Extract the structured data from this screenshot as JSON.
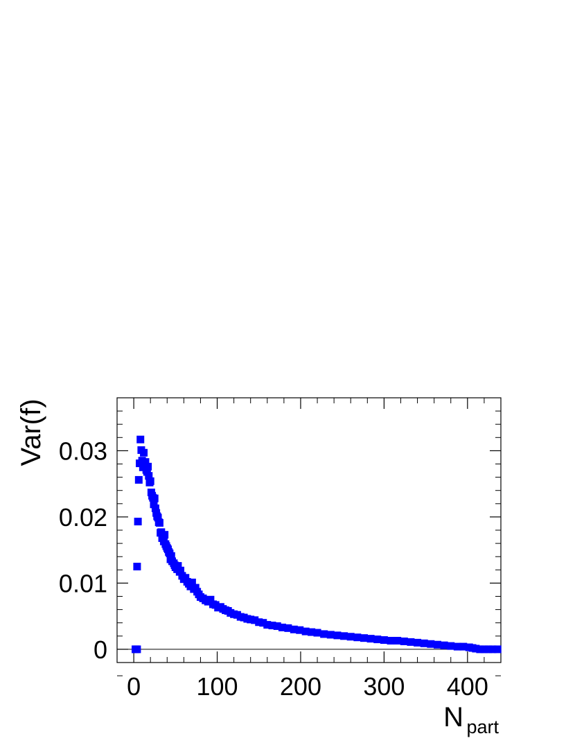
{
  "chart_data": {
    "type": "scatter",
    "title": "",
    "xlabel": {
      "main": "N",
      "sub": "part"
    },
    "ylabel": "Var(f)",
    "xlim": [
      -20,
      440
    ],
    "ylim": [
      -0.002,
      0.038
    ],
    "xticks": [
      {
        "value": 0,
        "label": "0"
      },
      {
        "value": 100,
        "label": "100"
      },
      {
        "value": 200,
        "label": "200"
      },
      {
        "value": 300,
        "label": "300"
      },
      {
        "value": 400,
        "label": "400"
      }
    ],
    "yticks": [
      {
        "value": 0,
        "label": "0"
      },
      {
        "value": 0.01,
        "label": "0.01"
      },
      {
        "value": 0.02,
        "label": "0.02"
      },
      {
        "value": 0.03,
        "label": "0.03"
      }
    ],
    "grid": false,
    "reference_line_y": 0,
    "marker": {
      "shape": "square",
      "color": "#0000ff"
    },
    "points": [
      [
        2,
        0.0
      ],
      [
        4,
        0.0
      ],
      [
        4,
        0.0125
      ],
      [
        5,
        0.0193
      ],
      [
        6,
        0.0256
      ],
      [
        7,
        0.0281
      ],
      [
        8,
        0.0317
      ],
      [
        9,
        0.0301
      ],
      [
        10,
        0.0285
      ],
      [
        11,
        0.0275
      ],
      [
        12,
        0.0297
      ],
      [
        13,
        0.0279
      ],
      [
        14,
        0.0283
      ],
      [
        15,
        0.0271
      ],
      [
        16,
        0.0268
      ],
      [
        17,
        0.0276
      ],
      [
        18,
        0.0262
      ],
      [
        19,
        0.0252
      ],
      [
        20,
        0.0254
      ],
      [
        21,
        0.0237
      ],
      [
        22,
        0.0232
      ],
      [
        23,
        0.0229
      ],
      [
        24,
        0.0219
      ],
      [
        25,
        0.0228
      ],
      [
        26,
        0.0213
      ],
      [
        27,
        0.0206
      ],
      [
        28,
        0.0201
      ],
      [
        29,
        0.0199
      ],
      [
        30,
        0.0192
      ],
      [
        31,
        0.0191
      ],
      [
        32,
        0.0176
      ],
      [
        33,
        0.0177
      ],
      [
        34,
        0.0168
      ],
      [
        35,
        0.0171
      ],
      [
        36,
        0.0163
      ],
      [
        37,
        0.0173
      ],
      [
        38,
        0.0159
      ],
      [
        39,
        0.0156
      ],
      [
        40,
        0.0153
      ],
      [
        41,
        0.0151
      ],
      [
        42,
        0.0147
      ],
      [
        43,
        0.0145
      ],
      [
        44,
        0.0136
      ],
      [
        45,
        0.0141
      ],
      [
        46,
        0.0133
      ],
      [
        48,
        0.013
      ],
      [
        49,
        0.0127
      ],
      [
        50,
        0.0124
      ],
      [
        52,
        0.0121
      ],
      [
        53,
        0.0126
      ],
      [
        55,
        0.0117
      ],
      [
        56,
        0.0119
      ],
      [
        58,
        0.0111
      ],
      [
        60,
        0.0106
      ],
      [
        62,
        0.0108
      ],
      [
        64,
        0.0102
      ],
      [
        66,
        0.0099
      ],
      [
        68,
        0.0095
      ],
      [
        70,
        0.0101
      ],
      [
        72,
        0.0091
      ],
      [
        74,
        0.0093
      ],
      [
        76,
        0.0087
      ],
      [
        78,
        0.0083
      ],
      [
        80,
        0.0079
      ],
      [
        83,
        0.0077
      ],
      [
        86,
        0.0074
      ],
      [
        89,
        0.0072
      ],
      [
        92,
        0.0075
      ],
      [
        95,
        0.0068
      ],
      [
        98,
        0.0067
      ],
      [
        101,
        0.0063
      ],
      [
        104,
        0.0064
      ],
      [
        107,
        0.0061
      ],
      [
        110,
        0.0059
      ],
      [
        113,
        0.0058
      ],
      [
        116,
        0.0055
      ],
      [
        120,
        0.0053
      ],
      [
        124,
        0.0052
      ],
      [
        128,
        0.0049
      ],
      [
        132,
        0.0048
      ],
      [
        136,
        0.0046
      ],
      [
        140,
        0.0045
      ],
      [
        145,
        0.0044
      ],
      [
        150,
        0.0041
      ],
      [
        155,
        0.004
      ],
      [
        160,
        0.0037
      ],
      [
        166,
        0.0036
      ],
      [
        172,
        0.0035
      ],
      [
        178,
        0.0033
      ],
      [
        185,
        0.0032
      ],
      [
        192,
        0.003
      ],
      [
        199,
        0.0029
      ],
      [
        206,
        0.0027
      ],
      [
        213,
        0.0026
      ],
      [
        220,
        0.0025
      ],
      [
        228,
        0.0023
      ],
      [
        236,
        0.0022
      ],
      [
        244,
        0.0021
      ],
      [
        252,
        0.002
      ],
      [
        260,
        0.0019
      ],
      [
        268,
        0.0018
      ],
      [
        276,
        0.0017
      ],
      [
        284,
        0.0016
      ],
      [
        292,
        0.0015
      ],
      [
        300,
        0.0014
      ],
      [
        308,
        0.0013
      ],
      [
        316,
        0.0013
      ],
      [
        324,
        0.0012
      ],
      [
        332,
        0.0011
      ],
      [
        340,
        0.001
      ],
      [
        348,
        0.0009
      ],
      [
        356,
        0.0008
      ],
      [
        364,
        0.0007
      ],
      [
        372,
        0.0006
      ],
      [
        380,
        0.0005
      ],
      [
        388,
        0.0004
      ],
      [
        395,
        0.0004
      ],
      [
        402,
        0.0003
      ],
      [
        406,
        0.0002
      ],
      [
        410,
        0.0001
      ],
      [
        415,
        0.0
      ],
      [
        420,
        0.0
      ],
      [
        425,
        0.0
      ],
      [
        430,
        0.0
      ],
      [
        436,
        0.0
      ]
    ]
  }
}
